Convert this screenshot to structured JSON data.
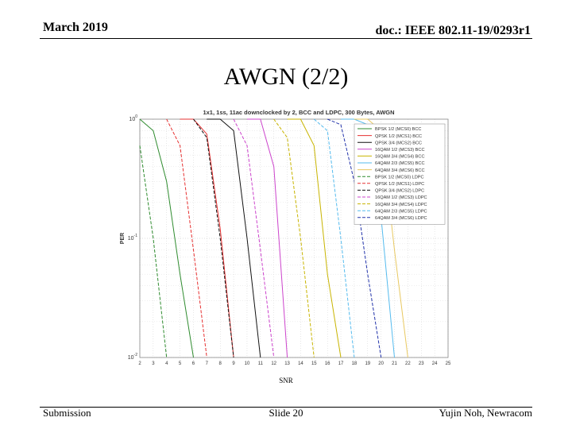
{
  "header": {
    "date": "March 2019",
    "doc": "doc.: IEEE 802.11-19/0293r1"
  },
  "slide": {
    "title": "AWGN (2/2)"
  },
  "footer": {
    "left": "Submission",
    "center": "Slide 20",
    "right": "Yujin Noh, Newracom"
  },
  "chart_data": {
    "type": "line",
    "title": "1x1, 1ss, 11ac downclocked by 2, BCC and LDPC, 300 Bytes, AWGN",
    "xlabel": "SNR",
    "ylabel": "PER",
    "xlim": [
      2,
      25
    ],
    "ylim": [
      0.01,
      1
    ],
    "yscale": "log",
    "xticks": [
      2,
      3,
      4,
      5,
      6,
      7,
      8,
      9,
      10,
      11,
      12,
      13,
      14,
      15,
      16,
      17,
      18,
      19,
      20,
      21,
      22,
      23,
      24,
      25
    ],
    "yticks": [
      {
        "value": 1,
        "base": "10",
        "exp": "0"
      },
      {
        "value": 0.1,
        "base": "10",
        "exp": "-1"
      },
      {
        "value": 0.01,
        "base": "10",
        "exp": "-2"
      }
    ],
    "grid": true,
    "legend_position": "top-right",
    "series": [
      {
        "name": "BPSK 1/2 (MCS0) BCC",
        "color": "#2e8b2e",
        "dash": "solid",
        "x": [
          2,
          3,
          4,
          5,
          6
        ],
        "y": [
          1,
          0.8,
          0.3,
          0.05,
          0.01
        ]
      },
      {
        "name": "QPSK 1/2 (MCS1) BCC",
        "color": "#e63030",
        "dash": "solid",
        "x": [
          5,
          6,
          7,
          8,
          9
        ],
        "y": [
          1,
          1,
          0.75,
          0.12,
          0.01
        ]
      },
      {
        "name": "QPSK 3/4 (MCS2) BCC",
        "color": "#111111",
        "dash": "solid",
        "x": [
          7,
          8,
          9,
          10,
          11
        ],
        "y": [
          1,
          1,
          0.8,
          0.1,
          0.01
        ]
      },
      {
        "name": "16QAM 1/2 (MCS3) BCC",
        "color": "#cc44cc",
        "dash": "solid",
        "x": [
          10,
          11,
          12,
          13
        ],
        "y": [
          1,
          1,
          0.4,
          0.01
        ]
      },
      {
        "name": "16QAM 3/4 (MCS4) BCC",
        "color": "#c8b400",
        "dash": "solid",
        "x": [
          13,
          14,
          15,
          16,
          17
        ],
        "y": [
          1,
          1,
          0.6,
          0.05,
          0.01
        ]
      },
      {
        "name": "64QAM 2/3 (MCS5) BCC",
        "color": "#55bbee",
        "dash": "solid",
        "x": [
          17,
          18,
          19,
          20,
          21
        ],
        "y": [
          1,
          1,
          0.9,
          0.15,
          0.01
        ]
      },
      {
        "name": "64QAM 3/4 (MCS6) BCC",
        "color": "#e8c860",
        "dash": "solid",
        "x": [
          18,
          19,
          20,
          21,
          22
        ],
        "y": [
          1,
          1,
          0.8,
          0.08,
          0.01
        ]
      },
      {
        "name": "BPSK 1/2 (MCS0) LDPC",
        "color": "#2e8b2e",
        "dash": "dashed",
        "x": [
          2,
          3,
          4
        ],
        "y": [
          0.6,
          0.1,
          0.01
        ]
      },
      {
        "name": "QPSK 1/2 (MCS1) LDPC",
        "color": "#e63030",
        "dash": "dashed",
        "x": [
          4,
          5,
          6,
          7
        ],
        "y": [
          1,
          0.6,
          0.08,
          0.01
        ]
      },
      {
        "name": "QPSK 3/4 (MCS2) LDPC",
        "color": "#111111",
        "dash": "dashed",
        "x": [
          6,
          7,
          8,
          9
        ],
        "y": [
          1,
          0.7,
          0.1,
          0.01
        ]
      },
      {
        "name": "16QAM 1/2 (MCS3) LDPC",
        "color": "#cc44cc",
        "dash": "dashed",
        "x": [
          9,
          10,
          11,
          12
        ],
        "y": [
          1,
          0.6,
          0.08,
          0.01
        ]
      },
      {
        "name": "16QAM 3/4 (MCS4) LDPC",
        "color": "#c8b400",
        "dash": "dashed",
        "x": [
          12,
          13,
          14,
          15
        ],
        "y": [
          1,
          0.7,
          0.1,
          0.01
        ]
      },
      {
        "name": "64QAM 2/3 (MCS5) LDPC",
        "color": "#55bbee",
        "dash": "dashed",
        "x": [
          15,
          16,
          17,
          18
        ],
        "y": [
          1,
          0.8,
          0.1,
          0.01
        ]
      },
      {
        "name": "64QAM 3/4 (MCS6) LDPC",
        "color": "#2233aa",
        "dash": "dashed",
        "x": [
          16,
          17,
          18,
          19,
          20
        ],
        "y": [
          1,
          0.9,
          0.3,
          0.05,
          0.01
        ]
      }
    ]
  }
}
